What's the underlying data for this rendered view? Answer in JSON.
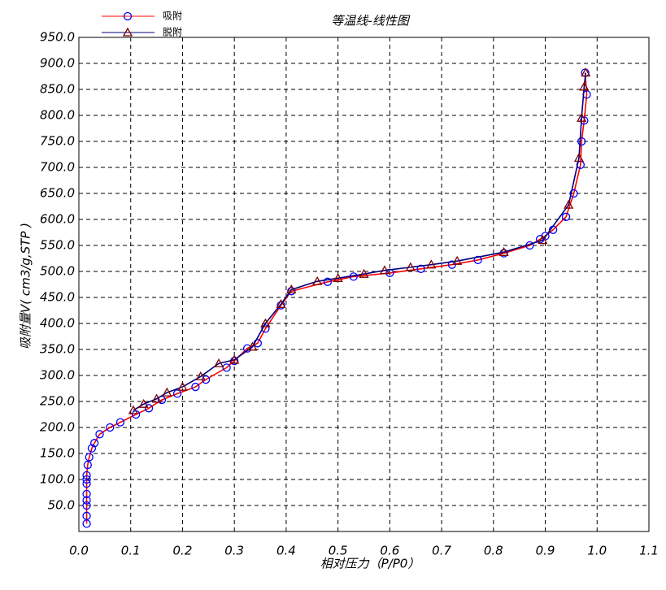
{
  "chart_data": {
    "type": "line",
    "title": "等温线-线性图",
    "x_label": "相对压力（P/P0）",
    "y_label": "吸附量V( cm3/g,STP )",
    "xlim": [
      0,
      1.1
    ],
    "ylim": [
      0,
      950
    ],
    "grid": true,
    "legend": "top-left",
    "xticks": [
      {
        "value": 0,
        "label": "0.0"
      },
      0.1,
      0.2,
      0.3,
      0.4,
      0.5,
      0.6,
      0.7,
      0.8,
      0.9,
      {
        "value": 1,
        "label": "1.0"
      },
      1.1
    ],
    "yticks": [
      {
        "value": 50,
        "label": "50.0"
      },
      {
        "value": 100,
        "label": "100.0"
      },
      {
        "value": 150,
        "label": "150.0"
      },
      {
        "value": 200,
        "label": "200.0"
      },
      {
        "value": 250,
        "label": "250.0"
      },
      {
        "value": 300,
        "label": "300.0"
      },
      {
        "value": 350,
        "label": "350.0"
      },
      {
        "value": 400,
        "label": "400.0"
      },
      {
        "value": 450,
        "label": "450.0"
      },
      {
        "value": 500,
        "label": "500.0"
      },
      {
        "value": 550,
        "label": "550.0"
      },
      {
        "value": 600,
        "label": "600.0"
      },
      {
        "value": 650,
        "label": "650.0"
      },
      {
        "value": 700,
        "label": "700.0"
      },
      {
        "value": 750,
        "label": "750.0"
      },
      {
        "value": 800,
        "label": "800.0"
      },
      {
        "value": 850,
        "label": "850.0"
      },
      {
        "value": 900,
        "label": "900.0"
      },
      {
        "value": 950,
        "label": "950.0"
      }
    ],
    "series": [
      {
        "name": "吸附",
        "color": "#ff0000",
        "marker": "circle",
        "marker_color": "#0000ff",
        "x": [
          0.015,
          0.015,
          0.015,
          0.015,
          0.015,
          0.015,
          0.015,
          0.015,
          0.017,
          0.02,
          0.025,
          0.03,
          0.04,
          0.06,
          0.08,
          0.11,
          0.135,
          0.16,
          0.19,
          0.225,
          0.245,
          0.285,
          0.3,
          0.325,
          0.345,
          0.36,
          0.39,
          0.41,
          0.48,
          0.53,
          0.6,
          0.66,
          0.72,
          0.77,
          0.82,
          0.87,
          0.89,
          0.9,
          0.915,
          0.94,
          0.955,
          0.968,
          0.97,
          0.975,
          0.98,
          0.977
        ],
        "values": [
          15,
          30,
          50,
          60,
          72,
          92,
          100,
          108,
          128,
          143,
          160,
          170,
          187,
          200,
          210,
          225,
          237,
          253,
          265,
          278,
          292,
          315,
          328,
          352,
          362,
          390,
          435,
          462,
          480,
          490,
          497,
          505,
          513,
          522,
          535,
          550,
          562,
          568,
          580,
          605,
          650,
          705,
          750,
          790,
          840,
          882
        ]
      },
      {
        "name": "脱附",
        "color": "#000080",
        "marker": "triangle",
        "marker_color": "#800000",
        "x": [
          0.978,
          0.975,
          0.97,
          0.965,
          0.945,
          0.895,
          0.82,
          0.73,
          0.68,
          0.64,
          0.59,
          0.55,
          0.5,
          0.46,
          0.41,
          0.39,
          0.36,
          0.335,
          0.3,
          0.27,
          0.235,
          0.2,
          0.17,
          0.15,
          0.125,
          0.105
        ],
        "values": [
          882,
          855,
          795,
          718,
          628,
          560,
          537,
          520,
          513,
          508,
          502,
          495,
          487,
          481,
          465,
          437,
          400,
          355,
          330,
          323,
          298,
          278,
          267,
          255,
          245,
          233
        ]
      }
    ]
  }
}
